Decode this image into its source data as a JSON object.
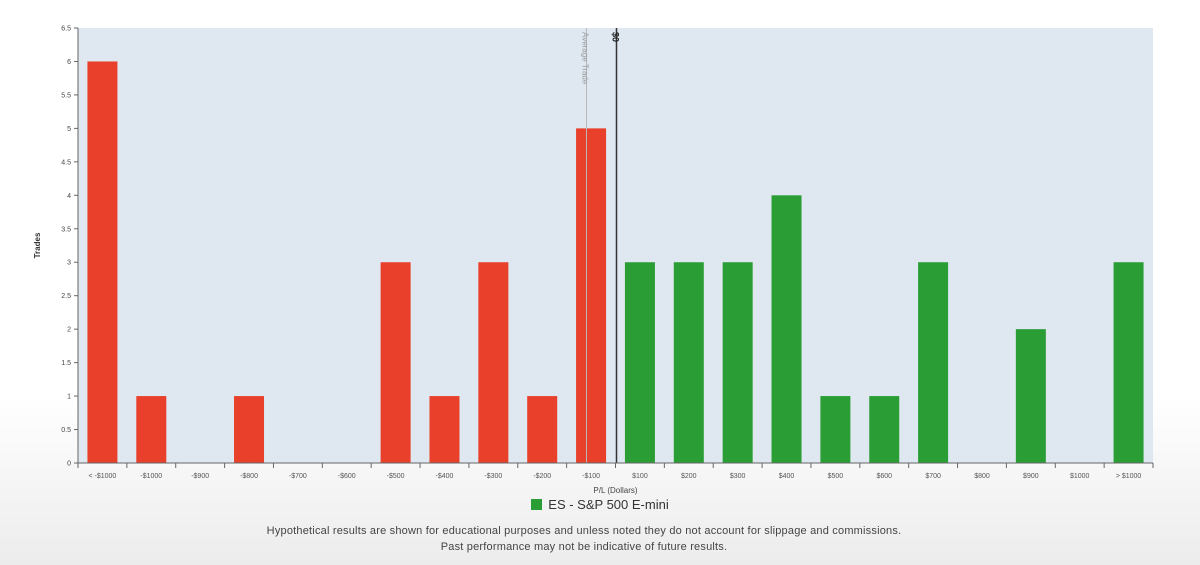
{
  "chart_data": {
    "type": "bar",
    "title": "",
    "xlabel": "P/L (Dollars)",
    "ylabel": "Trades",
    "ylim": [
      0,
      6.5
    ],
    "yticks": [
      "0",
      "0.5",
      "1",
      "1.5",
      "2",
      "2.5",
      "3",
      "3.5",
      "4",
      "4.5",
      "5",
      "5.5",
      "6",
      "6.5"
    ],
    "categories": [
      "< -$1000",
      "-$1000",
      "-$900",
      "-$800",
      "-$700",
      "-$600",
      "-$500",
      "-$400",
      "-$300",
      "-$200",
      "-$100",
      "$100",
      "$200",
      "$300",
      "$400",
      "$500",
      "$600",
      "$700",
      "$800",
      "$900",
      "$1000",
      "> $1000"
    ],
    "values": [
      6,
      1,
      0,
      1,
      0,
      0,
      3,
      1,
      3,
      1,
      5,
      3,
      3,
      3,
      4,
      1,
      1,
      3,
      0,
      2,
      0,
      3
    ],
    "colors": {
      "loss": "#e8402a",
      "gain": "#2a9d35",
      "plot_bg": "#dfe8f1"
    },
    "reference_lines": [
      {
        "label": "Average Trade",
        "value": -50
      },
      {
        "label": "$0",
        "value": 0
      }
    ],
    "legend": {
      "label": "ES - S&P 500 E-mini",
      "position": "bottom"
    },
    "grid": false
  },
  "disclaimer": {
    "line1": "Hypothetical results are shown for educational purposes and unless noted they do not account for slippage and commissions.",
    "line2": "Past performance may not be indicative of future results."
  }
}
